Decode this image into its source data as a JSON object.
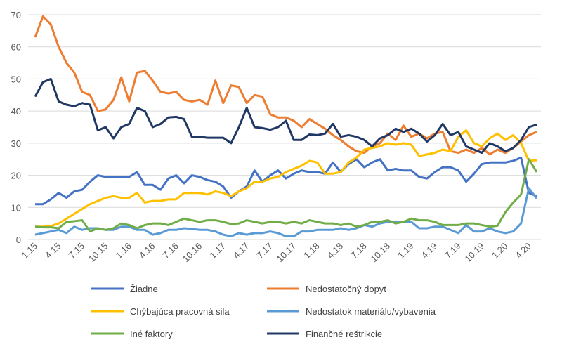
{
  "chart_data": {
    "type": "line",
    "categories": [
      "1.15",
      null,
      null,
      "4.15",
      null,
      null,
      "7.15",
      null,
      null,
      "10.15",
      null,
      null,
      "1.16",
      null,
      null,
      "4.16",
      null,
      null,
      "7.16",
      null,
      null,
      "10.16",
      null,
      null,
      "1.17",
      null,
      null,
      "4.17",
      null,
      null,
      "7.17",
      null,
      null,
      "10.17",
      null,
      null,
      "1.18",
      null,
      null,
      "4.18",
      null,
      null,
      "7.18",
      null,
      null,
      "10.18",
      null,
      null,
      "1.19",
      null,
      null,
      "4.19",
      null,
      null,
      "7.19",
      null,
      null,
      "10.19",
      null,
      null,
      "1.20",
      null,
      null,
      "4.20",
      null
    ],
    "ylim": [
      0,
      70
    ],
    "yticks": [
      0,
      10,
      20,
      30,
      40,
      50,
      60,
      70
    ],
    "grid": true,
    "series": [
      {
        "name": "Žiadne",
        "color": "#4472c4",
        "values": [
          11,
          11,
          12.5,
          14.5,
          13,
          15,
          15.5,
          18,
          20,
          19.5,
          19.5,
          19.5,
          19.5,
          21,
          17,
          17,
          15.5,
          19,
          20,
          17.5,
          20,
          19.5,
          18.5,
          18,
          16.5,
          13,
          15,
          16.5,
          21.5,
          18,
          20,
          21.5,
          19,
          20.5,
          21.5,
          21,
          21,
          20.5,
          24,
          21,
          23.5,
          25,
          22.5,
          24,
          25,
          21.5,
          22,
          21.5,
          21.5,
          19.5,
          19,
          21,
          22.5,
          22.5,
          21.5,
          18,
          20.5,
          23.5,
          24,
          24,
          24,
          24.5,
          25.5,
          14.5,
          13.5
        ]
      },
      {
        "name": "Nedostatočný dopyt",
        "color": "#ed7d31",
        "values": [
          63,
          69.5,
          67,
          60,
          55,
          52,
          46,
          45,
          40,
          40.5,
          43.5,
          50.5,
          43,
          52,
          52.5,
          49.5,
          46,
          45.5,
          46,
          43.5,
          43,
          43.5,
          42,
          49.5,
          42.5,
          48,
          47.5,
          42.5,
          45,
          44.5,
          39,
          38,
          38,
          37,
          35,
          37.5,
          36,
          34.5,
          32.5,
          31,
          29,
          27.5,
          27,
          29,
          30,
          33,
          31,
          35.5,
          32,
          33,
          31.5,
          33,
          33.5,
          27.5,
          27,
          28,
          27,
          28.5,
          26.5,
          28,
          27,
          28.5,
          30.5,
          32.5,
          33.5
        ]
      },
      {
        "name": "Chýbajúca pracovná sila",
        "color": "#ffc000",
        "values": [
          4,
          4,
          4.2,
          5,
          6.5,
          8,
          9.5,
          11,
          12,
          13,
          13.5,
          13,
          13,
          14.5,
          11.5,
          12,
          12,
          12.5,
          12.5,
          14.5,
          14.5,
          14.5,
          14,
          15,
          14.5,
          13.5,
          15,
          16,
          18,
          18,
          19,
          19.5,
          21,
          22,
          23,
          24.5,
          24,
          20.5,
          20.5,
          21,
          24,
          25.5,
          28,
          28.5,
          29,
          30,
          29.5,
          30,
          29.5,
          26,
          26.5,
          27,
          28,
          27.5,
          32,
          34,
          30,
          29,
          31.5,
          33,
          31,
          32.5,
          30,
          24.5,
          24.7
        ]
      },
      {
        "name": "Nedostatok materiálu/vybavenia",
        "color": "#5b9bd5",
        "values": [
          1.5,
          2,
          2.5,
          3,
          2,
          4,
          3,
          3.5,
          3.5,
          3,
          3,
          4,
          4,
          3,
          3,
          1.5,
          2,
          3,
          3,
          3.5,
          3.3,
          3,
          3,
          2.5,
          1.5,
          1,
          2,
          1.5,
          2,
          2,
          2.5,
          2,
          1,
          1,
          2.5,
          2.5,
          3,
          3,
          3,
          3.5,
          3,
          3.5,
          4.5,
          4,
          5,
          5.5,
          5.5,
          5.5,
          5.5,
          3.5,
          3.5,
          4,
          4,
          3,
          2,
          4.5,
          2.5,
          2.5,
          3.5,
          2.5,
          2,
          2.5,
          5,
          16,
          12.8
        ]
      },
      {
        "name": "Iné faktory",
        "color": "#70ad47",
        "values": [
          4,
          3.8,
          3.8,
          3.5,
          5.5,
          5.7,
          6,
          2.5,
          3.5,
          3,
          3.5,
          5,
          4.5,
          3.5,
          4.5,
          5,
          5,
          4.5,
          5.5,
          6.5,
          6,
          5.5,
          6,
          6,
          5.5,
          4.8,
          5,
          6,
          5.5,
          5,
          5.5,
          5.5,
          5,
          5.5,
          5,
          6,
          5.5,
          5,
          5,
          4.5,
          5,
          4,
          4.5,
          5.5,
          5.5,
          6,
          5,
          5.5,
          6.5,
          6,
          6,
          5.5,
          4.5,
          4.5,
          4.5,
          5,
          5,
          4.5,
          4,
          4.3,
          8.5,
          11.5,
          14,
          25,
          21
        ]
      },
      {
        "name": "Finančné reštrikcie",
        "color": "#203864",
        "values": [
          44.5,
          49,
          50,
          43,
          42,
          41.5,
          42.5,
          42,
          34,
          35,
          31.5,
          35,
          36,
          41,
          40,
          35,
          36,
          38,
          38.2,
          37.5,
          32,
          32,
          31.7,
          31.7,
          31.7,
          30,
          35,
          41,
          35,
          34.7,
          34.2,
          35,
          37,
          31,
          31,
          32.7,
          32.5,
          33,
          36,
          32,
          32.5,
          32,
          31,
          29,
          31.5,
          32.5,
          34.5,
          33.5,
          34.5,
          33,
          30.5,
          32.5,
          36,
          32.5,
          33.5,
          29,
          28,
          27,
          30,
          29,
          27.5,
          28.5,
          31,
          35,
          35.8
        ]
      }
    ]
  }
}
